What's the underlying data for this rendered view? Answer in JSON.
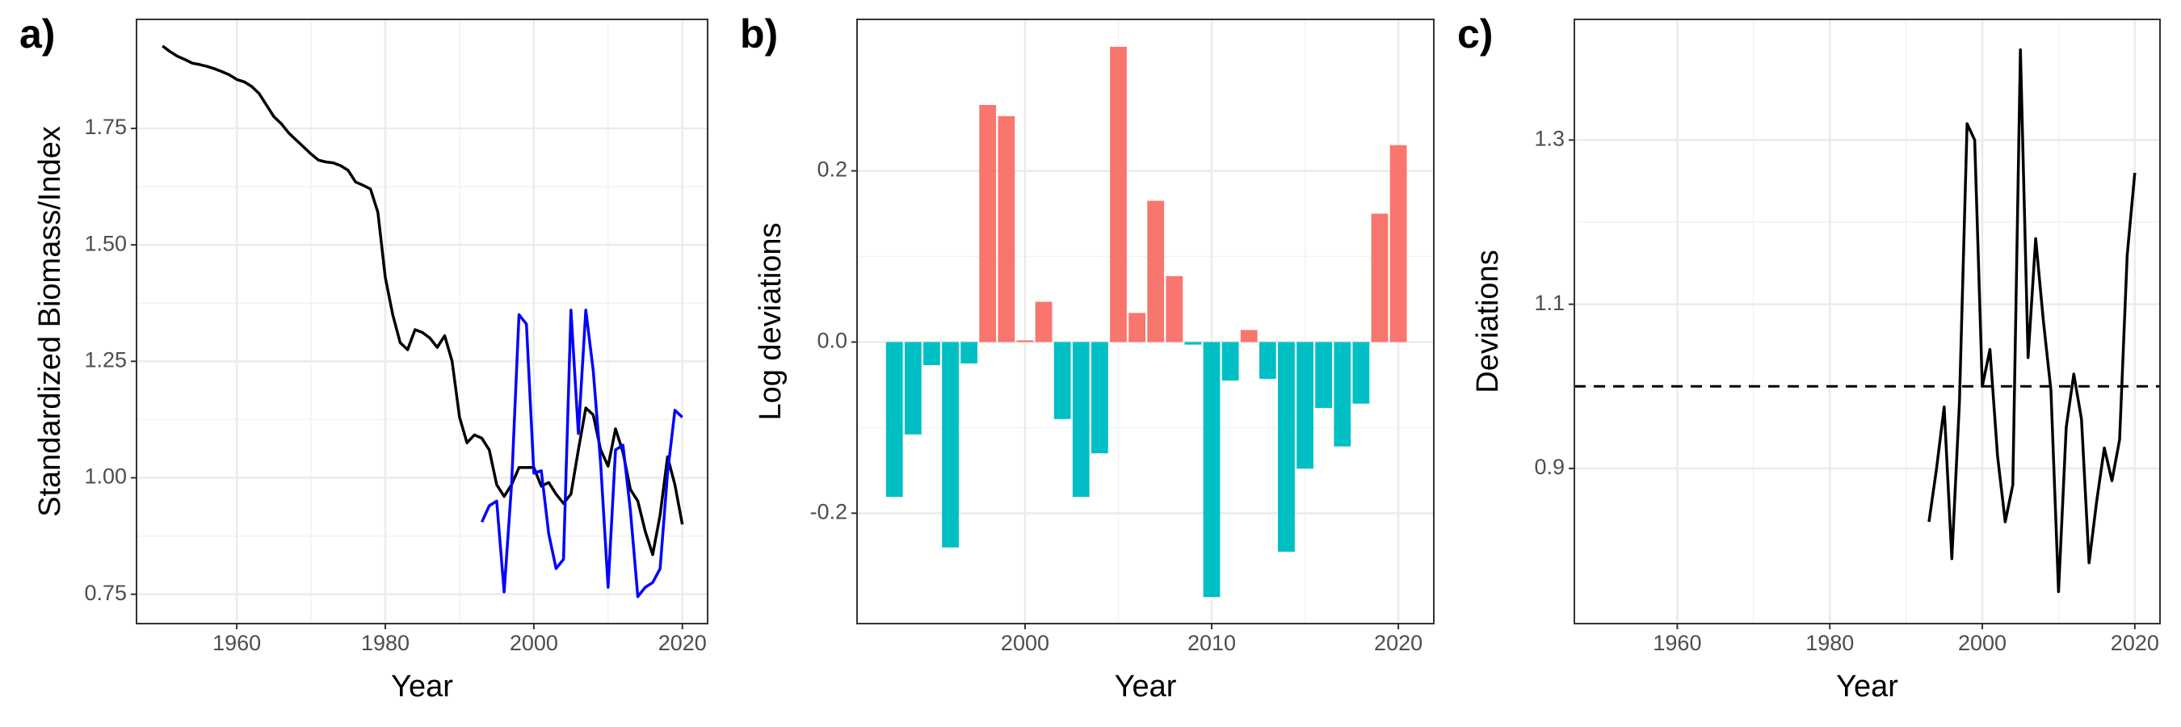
{
  "chart_data": [
    {
      "type": "line",
      "panel_label": "a)",
      "xlabel": "Year",
      "ylabel": "Standardized Biomass/Index",
      "x": [
        1950,
        1951,
        1952,
        1953,
        1954,
        1955,
        1956,
        1957,
        1958,
        1959,
        1960,
        1961,
        1962,
        1963,
        1964,
        1965,
        1966,
        1967,
        1968,
        1969,
        1970,
        1971,
        1972,
        1973,
        1974,
        1975,
        1976,
        1977,
        1978,
        1979,
        1980,
        1981,
        1982,
        1983,
        1984,
        1985,
        1986,
        1987,
        1988,
        1989,
        1990,
        1991,
        1992,
        1993,
        1994,
        1995,
        1996,
        1997,
        1998,
        1999,
        2000,
        2001,
        2002,
        2003,
        2004,
        2005,
        2006,
        2007,
        2008,
        2009,
        2010,
        2011,
        2012,
        2013,
        2014,
        2015,
        2016,
        2017,
        2018,
        2019,
        2020
      ],
      "series": [
        {
          "color": "#000000",
          "values": [
            1.927,
            1.915,
            1.905,
            1.898,
            1.89,
            1.887,
            1.883,
            1.878,
            1.872,
            1.865,
            1.855,
            1.85,
            1.84,
            1.825,
            1.8,
            1.775,
            1.76,
            1.74,
            1.725,
            1.71,
            1.695,
            1.682,
            1.678,
            1.676,
            1.67,
            1.66,
            1.635,
            1.628,
            1.62,
            1.57,
            1.43,
            1.35,
            1.29,
            1.275,
            1.318,
            1.312,
            1.3,
            1.28,
            1.305,
            1.25,
            1.13,
            1.075,
            1.092,
            1.085,
            1.06,
            0.985,
            0.96,
            0.985,
            1.022,
            1.022,
            1.022,
            0.982,
            0.99,
            0.965,
            0.945,
            0.965,
            1.06,
            1.15,
            1.135,
            1.06,
            1.025,
            1.105,
            1.055,
            0.975,
            0.95,
            0.885,
            0.835,
            0.92,
            1.045,
            0.985,
            0.9
          ]
        },
        {
          "color": "#0000ff",
          "values": [
            null,
            null,
            null,
            null,
            null,
            null,
            null,
            null,
            null,
            null,
            null,
            null,
            null,
            null,
            null,
            null,
            null,
            null,
            null,
            null,
            null,
            null,
            null,
            null,
            null,
            null,
            null,
            null,
            null,
            null,
            null,
            null,
            null,
            null,
            null,
            null,
            null,
            null,
            null,
            null,
            null,
            null,
            null,
            0.905,
            0.94,
            0.95,
            0.755,
            0.985,
            1.35,
            1.33,
            1.01,
            1.015,
            0.88,
            0.805,
            0.825,
            1.36,
            1.095,
            1.36,
            1.23,
            1.03,
            0.765,
            1.06,
            1.07,
            0.93,
            0.745,
            0.765,
            0.775,
            0.805,
            1.01,
            1.145,
            1.13
          ]
        }
      ],
      "xlim": [
        1946.5,
        2023.4
      ],
      "ylim": [
        0.687,
        1.984
      ],
      "xticks": [
        1960,
        1980,
        2000,
        2020
      ],
      "yticks": [
        0.75,
        {
          "value": 1,
          "label": "1.00"
        },
        1.25,
        {
          "value": 1.5,
          "label": "1.50"
        },
        1.75
      ],
      "grid": true
    },
    {
      "type": "bar",
      "panel_label": "b)",
      "xlabel": "Year",
      "ylabel": "Log deviations",
      "x": [
        1993,
        1994,
        1995,
        1996,
        1997,
        1998,
        1999,
        2000,
        2001,
        2002,
        2003,
        2004,
        2005,
        2006,
        2007,
        2008,
        2009,
        2010,
        2011,
        2012,
        2013,
        2014,
        2015,
        2016,
        2017,
        2018,
        2019,
        2020
      ],
      "values": [
        -0.181,
        -0.108,
        -0.027,
        -0.24,
        -0.025,
        0.277,
        0.264,
        0.002,
        0.047,
        -0.09,
        -0.181,
        -0.13,
        0.345,
        0.034,
        0.165,
        0.077,
        -0.003,
        -0.298,
        -0.045,
        0.014,
        -0.043,
        -0.245,
        -0.148,
        -0.077,
        -0.122,
        -0.072,
        0.15,
        0.23
      ],
      "positive_color": "#f8766d",
      "negative_color": "#00bfc4",
      "xlim": [
        1991,
        2021.9
      ],
      "ylim": [
        -0.329,
        0.377
      ],
      "xticks": [
        2000,
        2010,
        2020
      ],
      "yticks": [
        -0.2,
        {
          "value": 0,
          "label": "0.0"
        },
        0.2
      ],
      "grid": true
    },
    {
      "type": "line",
      "panel_label": "c)",
      "xlabel": "Year",
      "ylabel": "Deviations",
      "x": [
        1993,
        1994,
        1995,
        1996,
        1997,
        1998,
        1999,
        2000,
        2001,
        2002,
        2003,
        2004,
        2005,
        2006,
        2007,
        2008,
        2009,
        2010,
        2011,
        2012,
        2013,
        2014,
        2015,
        2016,
        2017,
        2018,
        2019,
        2020
      ],
      "series": [
        {
          "color": "#000000",
          "values": [
            0.835,
            0.9,
            0.975,
            0.79,
            0.98,
            1.32,
            1.3,
            1.0,
            1.045,
            0.915,
            0.835,
            0.88,
            1.41,
            1.035,
            1.18,
            1.08,
            0.995,
            0.75,
            0.95,
            1.015,
            0.96,
            0.785,
            0.86,
            0.925,
            0.885,
            0.935,
            1.16,
            1.26
          ]
        }
      ],
      "hline": 1,
      "xlim": [
        1946.5,
        2023.3
      ],
      "ylim": [
        0.711,
        1.447
      ],
      "xticks": [
        1960,
        1980,
        2000,
        2020
      ],
      "yticks": [
        0.9,
        1.1,
        1.3
      ],
      "grid": true
    }
  ]
}
